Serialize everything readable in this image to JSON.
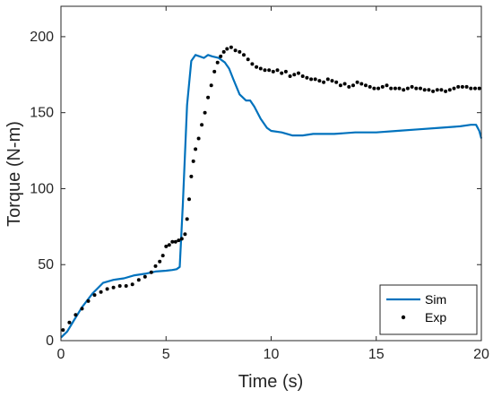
{
  "chart_data": {
    "type": "line",
    "xlabel": "Time (s)",
    "ylabel": "Torque (N-m)",
    "xlim": [
      0,
      20
    ],
    "ylim": [
      0,
      220
    ],
    "xticks": [
      0,
      5,
      10,
      15,
      20
    ],
    "yticks": [
      0,
      50,
      100,
      150,
      200
    ],
    "grid": false,
    "legend_position": "bottom-right",
    "series": [
      {
        "name": "Sim",
        "style": "solid-line",
        "color": "#0072BD",
        "x": [
          0,
          0.3,
          0.6,
          1.0,
          1.5,
          2.0,
          2.5,
          3.0,
          3.5,
          4.0,
          4.5,
          5.0,
          5.3,
          5.5,
          5.65,
          5.8,
          6.0,
          6.2,
          6.4,
          6.6,
          6.8,
          7.0,
          7.2,
          7.5,
          7.8,
          8.0,
          8.2,
          8.5,
          8.8,
          9.0,
          9.2,
          9.5,
          9.8,
          10.0,
          10.5,
          11.0,
          11.5,
          12.0,
          13.0,
          14.0,
          15.0,
          16.0,
          17.0,
          18.0,
          19.0,
          19.5,
          19.75,
          19.9,
          20.0
        ],
        "y": [
          2,
          6,
          13,
          22,
          31,
          38,
          40,
          41,
          43,
          44,
          45.5,
          46,
          46.5,
          47,
          48.5,
          90,
          155,
          184,
          188,
          187,
          186,
          188,
          187,
          186,
          183,
          179,
          172,
          162,
          158,
          158,
          154,
          146,
          140,
          138,
          137,
          135,
          135,
          136,
          136,
          137,
          137,
          138,
          139,
          140,
          141,
          142,
          142,
          138,
          133
        ]
      },
      {
        "name": "Exp",
        "style": "dotted",
        "color": "#000000",
        "x": [
          0.1,
          0.4,
          0.7,
          1.0,
          1.3,
          1.6,
          1.9,
          2.2,
          2.5,
          2.8,
          3.1,
          3.4,
          3.7,
          4.0,
          4.3,
          4.5,
          4.7,
          4.85,
          5.0,
          5.15,
          5.3,
          5.45,
          5.6,
          5.75,
          5.9,
          6.0,
          6.1,
          6.2,
          6.3,
          6.4,
          6.55,
          6.7,
          6.85,
          7.0,
          7.15,
          7.3,
          7.45,
          7.6,
          7.75,
          7.9,
          8.1,
          8.3,
          8.5,
          8.7,
          8.9,
          9.1,
          9.3,
          9.5,
          9.7,
          9.9,
          10.1,
          10.3,
          10.5,
          10.7,
          10.9,
          11.1,
          11.3,
          11.5,
          11.7,
          11.9,
          12.1,
          12.3,
          12.5,
          12.7,
          12.9,
          13.1,
          13.3,
          13.5,
          13.7,
          13.9,
          14.1,
          14.3,
          14.5,
          14.7,
          14.9,
          15.1,
          15.3,
          15.5,
          15.7,
          15.9,
          16.1,
          16.3,
          16.5,
          16.7,
          16.9,
          17.1,
          17.3,
          17.5,
          17.7,
          17.9,
          18.1,
          18.3,
          18.5,
          18.7,
          18.9,
          19.1,
          19.3,
          19.5,
          19.7,
          19.9
        ],
        "y": [
          7,
          12,
          17,
          21,
          26,
          30,
          32,
          34,
          35,
          36,
          36,
          37,
          40,
          42,
          45,
          49,
          52,
          56,
          62,
          63,
          65,
          65,
          66,
          67,
          70,
          80,
          93,
          108,
          118,
          126,
          133,
          142,
          150,
          160,
          168,
          177,
          183,
          187,
          190,
          192,
          193,
          191,
          190,
          188,
          185,
          182,
          180,
          179,
          178,
          178,
          177,
          178,
          176,
          177,
          174,
          175,
          176,
          174,
          173,
          172,
          172,
          171,
          170,
          172,
          171,
          170,
          168,
          169,
          167,
          168,
          170,
          169,
          168,
          167,
          166,
          166,
          167,
          168,
          166,
          166,
          166,
          165,
          166,
          167,
          166,
          166,
          165,
          165,
          164,
          165,
          165,
          164,
          165,
          166,
          167,
          167,
          167,
          166,
          166,
          166
        ]
      }
    ]
  }
}
